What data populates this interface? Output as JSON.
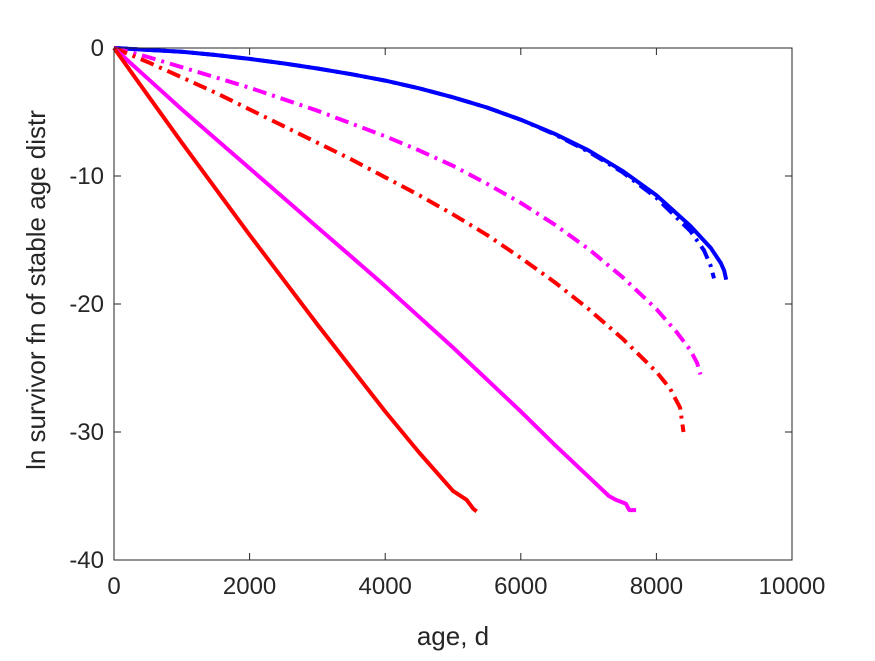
{
  "chart_data": {
    "type": "line",
    "title": "",
    "xlabel": "age, d",
    "ylabel": "ln survivor fn of stable age distr",
    "xlim": [
      0,
      10000
    ],
    "ylim": [
      -40,
      0
    ],
    "xticks": [
      0,
      2000,
      4000,
      6000,
      8000,
      10000
    ],
    "yticks": [
      0,
      -10,
      -20,
      -30,
      -40
    ],
    "xtick_labels": [
      "0",
      "2000",
      "4000",
      "6000",
      "8000",
      "10000"
    ],
    "ytick_labels": [
      "0",
      "-10",
      "-20",
      "-30",
      "-40"
    ],
    "grid": false,
    "legend": "none",
    "series": [
      {
        "color": "#0000ff",
        "style": "solid",
        "x": [
          0,
          500,
          1000,
          1500,
          2000,
          2500,
          3000,
          3500,
          4000,
          4500,
          5000,
          5500,
          6000,
          6500,
          7000,
          7500,
          8000,
          8500,
          8800,
          8950,
          9000,
          9030
        ],
        "y": [
          0,
          -0.15,
          -0.3,
          -0.55,
          -0.85,
          -1.2,
          -1.6,
          -2.05,
          -2.55,
          -3.15,
          -3.85,
          -4.65,
          -5.6,
          -6.7,
          -8.0,
          -9.6,
          -11.5,
          -13.9,
          -15.6,
          -16.8,
          -17.4,
          -18.1
        ]
      },
      {
        "color": "#0000ff",
        "style": "dashdot",
        "x": [
          0,
          500,
          1000,
          1500,
          2000,
          2500,
          3000,
          3500,
          4000,
          4500,
          5000,
          5500,
          6000,
          6500,
          7000,
          7500,
          8000,
          8500,
          8700,
          8800,
          8850
        ],
        "y": [
          0,
          -0.15,
          -0.3,
          -0.55,
          -0.85,
          -1.2,
          -1.6,
          -2.05,
          -2.55,
          -3.15,
          -3.85,
          -4.65,
          -5.6,
          -6.75,
          -8.1,
          -9.7,
          -11.7,
          -14.3,
          -15.8,
          -17.0,
          -18.0
        ]
      },
      {
        "color": "#ff00ff",
        "style": "dashdot",
        "x": [
          0,
          500,
          1000,
          1500,
          2000,
          2500,
          3000,
          3500,
          4000,
          4500,
          5000,
          5500,
          6000,
          6500,
          7000,
          7500,
          8000,
          8300,
          8500,
          8600,
          8650
        ],
        "y": [
          0,
          -0.7,
          -1.5,
          -2.3,
          -3.1,
          -4.0,
          -4.9,
          -5.9,
          -6.9,
          -8.0,
          -9.2,
          -10.6,
          -12.1,
          -13.8,
          -15.7,
          -17.9,
          -20.4,
          -22.2,
          -23.6,
          -24.6,
          -25.5
        ]
      },
      {
        "color": "#ff0000",
        "style": "dashdot",
        "x": [
          0,
          500,
          1000,
          1500,
          2000,
          2500,
          3000,
          3500,
          4000,
          4500,
          5000,
          5500,
          6000,
          6500,
          7000,
          7500,
          8000,
          8200,
          8350,
          8400
        ],
        "y": [
          0,
          -1.1,
          -2.3,
          -3.5,
          -4.8,
          -6.1,
          -7.4,
          -8.7,
          -10.1,
          -11.5,
          -13.0,
          -14.6,
          -16.4,
          -18.3,
          -20.4,
          -22.7,
          -25.3,
          -26.6,
          -28.1,
          -30.0
        ]
      },
      {
        "color": "#ff00ff",
        "style": "solid",
        "x": [
          0,
          500,
          1000,
          1500,
          2000,
          2500,
          3000,
          3500,
          4000,
          4500,
          5000,
          5500,
          6000,
          6500,
          7000,
          7300,
          7400,
          7500,
          7550,
          7600,
          7650,
          7700
        ],
        "y": [
          0,
          -2.4,
          -4.8,
          -7.1,
          -9.4,
          -11.7,
          -14.0,
          -16.3,
          -18.6,
          -21.0,
          -23.4,
          -25.9,
          -28.4,
          -31.0,
          -33.5,
          -35.0,
          -35.3,
          -35.5,
          -35.6,
          -36.1,
          -36.1,
          -36.1
        ]
      },
      {
        "color": "#ff0000",
        "style": "solid",
        "x": [
          0,
          500,
          1000,
          1500,
          2000,
          2500,
          3000,
          3500,
          4000,
          4500,
          5000,
          5200,
          5300,
          5350
        ],
        "y": [
          0,
          -3.7,
          -7.4,
          -11.0,
          -14.6,
          -18.1,
          -21.6,
          -25.0,
          -28.4,
          -31.6,
          -34.6,
          -35.3,
          -36.0,
          -36.2
        ]
      }
    ]
  }
}
